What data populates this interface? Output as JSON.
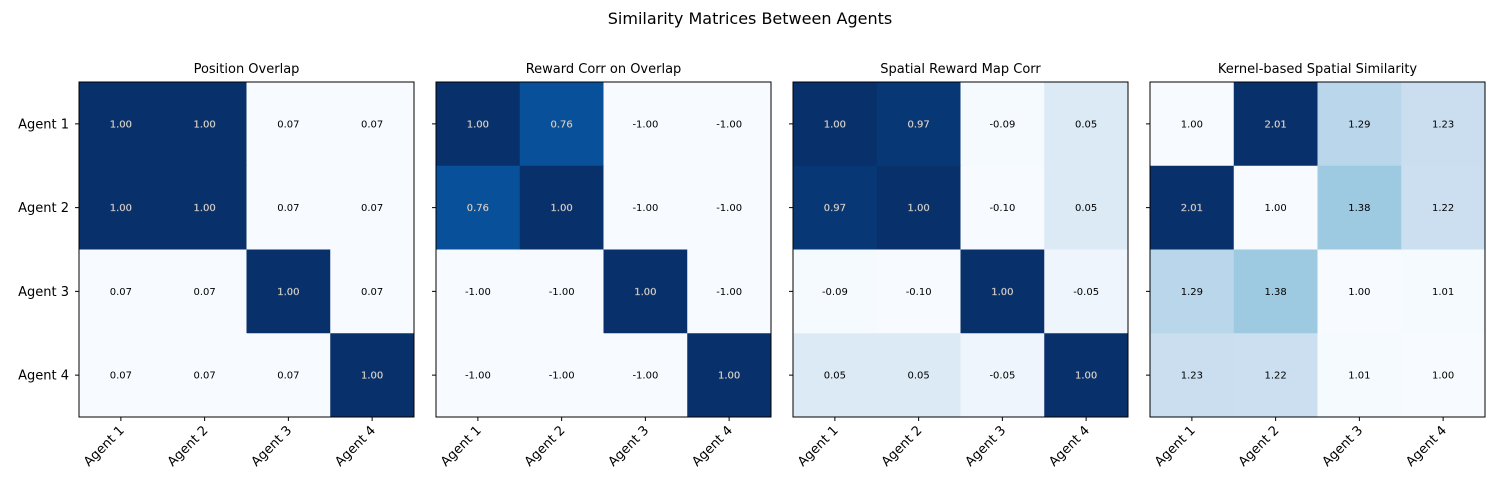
{
  "chart_data": {
    "type": "heatmap",
    "title": "Similarity Matrices Between Agents",
    "colormap": "Blues",
    "labels": [
      "Agent 1",
      "Agent 2",
      "Agent 3",
      "Agent 4"
    ],
    "panels": [
      {
        "title": "Position Overlap",
        "values": [
          [
            1.0,
            1.0,
            0.07,
            0.07
          ],
          [
            1.0,
            1.0,
            0.07,
            0.07
          ],
          [
            0.07,
            0.07,
            1.0,
            0.07
          ],
          [
            0.07,
            0.07,
            0.07,
            1.0
          ]
        ],
        "display": [
          [
            "1.00",
            "1.00",
            "0.07",
            "0.07"
          ],
          [
            "1.00",
            "1.00",
            "0.07",
            "0.07"
          ],
          [
            "0.07",
            "0.07",
            "1.00",
            "0.07"
          ],
          [
            "0.07",
            "0.07",
            "0.07",
            "1.00"
          ]
        ]
      },
      {
        "title": "Reward Corr on Overlap",
        "values": [
          [
            1.0,
            0.76,
            -1.0,
            -1.0
          ],
          [
            0.76,
            1.0,
            -1.0,
            -1.0
          ],
          [
            -1.0,
            -1.0,
            1.0,
            -1.0
          ],
          [
            -1.0,
            -1.0,
            -1.0,
            1.0
          ]
        ],
        "display": [
          [
            "1.00",
            "0.76",
            "-1.00",
            "-1.00"
          ],
          [
            "0.76",
            "1.00",
            "-1.00",
            "-1.00"
          ],
          [
            "-1.00",
            "-1.00",
            "1.00",
            "-1.00"
          ],
          [
            "-1.00",
            "-1.00",
            "-1.00",
            "1.00"
          ]
        ]
      },
      {
        "title": "Spatial Reward Map Corr",
        "values": [
          [
            1.0,
            0.97,
            -0.09,
            0.05
          ],
          [
            0.97,
            1.0,
            -0.1,
            0.05
          ],
          [
            -0.09,
            -0.1,
            1.0,
            -0.05
          ],
          [
            0.05,
            0.05,
            -0.05,
            1.0
          ]
        ],
        "display": [
          [
            "1.00",
            "0.97",
            "-0.09",
            "0.05"
          ],
          [
            "0.97",
            "1.00",
            "-0.10",
            "0.05"
          ],
          [
            "-0.09",
            "-0.10",
            "1.00",
            "-0.05"
          ],
          [
            "0.05",
            "0.05",
            "-0.05",
            "1.00"
          ]
        ]
      },
      {
        "title": "Kernel-based Spatial Similarity",
        "values": [
          [
            1.0,
            2.01,
            1.29,
            1.23
          ],
          [
            2.01,
            1.0,
            1.38,
            1.22
          ],
          [
            1.29,
            1.38,
            1.0,
            1.01
          ],
          [
            1.23,
            1.22,
            1.01,
            1.0
          ]
        ],
        "display": [
          [
            "1.00",
            "2.01",
            "1.29",
            "1.23"
          ],
          [
            "2.01",
            "1.00",
            "1.38",
            "1.22"
          ],
          [
            "1.29",
            "1.38",
            "1.00",
            "1.01"
          ],
          [
            "1.23",
            "1.22",
            "1.01",
            "1.00"
          ]
        ]
      }
    ]
  }
}
